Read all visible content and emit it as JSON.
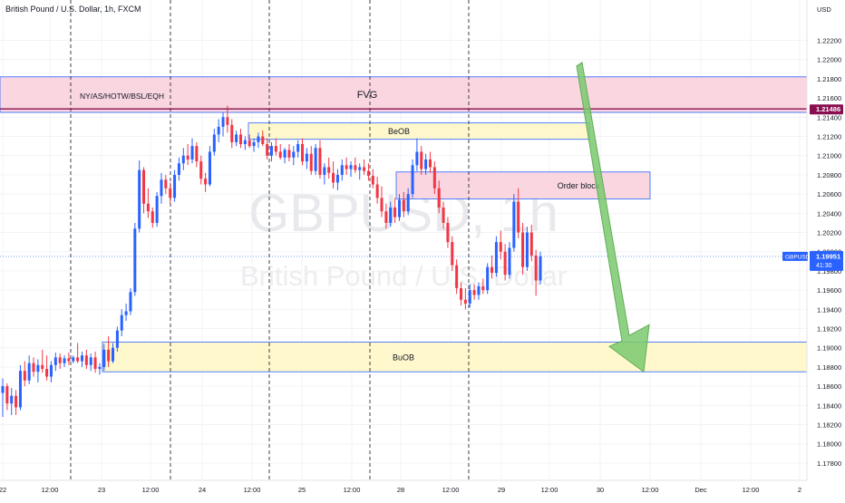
{
  "header": {
    "symbol_description": "British Pound / U.S. Dollar, 1h, FXCM",
    "currency": "USD"
  },
  "watermark": {
    "symbol": "GBPUSD, 1h",
    "name": "British Pound / U.S. Dollar"
  },
  "price_label": {
    "ticker": "GBPUSD",
    "price": "1.19951",
    "countdown": "41:30"
  },
  "colors": {
    "up": "#2962ff",
    "down": "#f23645",
    "pink_zone": "#f9d6e0",
    "yellow_zone": "#fff8cc",
    "zone_border": "#2962ff",
    "level_line": "#880e4f",
    "arrow": "#7bc96f"
  },
  "chart_data": {
    "type": "candlestick",
    "y_axis": {
      "min": 1.1762,
      "max": 1.2262,
      "ticks": [
        "1.22200",
        "1.22000",
        "1.21800",
        "1.21600",
        "1.21400",
        "1.21200",
        "1.21000",
        "1.20800",
        "1.20600",
        "1.20400",
        "1.20200",
        "1.20000",
        "1.19800",
        "1.19600",
        "1.19400",
        "1.19200",
        "1.19000",
        "1.18800",
        "1.18600",
        "1.18400",
        "1.18200",
        "1.18000",
        "1.17800"
      ]
    },
    "x_axis": {
      "ticks": [
        "22",
        "12:00",
        "23",
        "12:00",
        "24",
        "12:00",
        "25",
        "12:00",
        "28",
        "12:00",
        "29",
        "12:00",
        "30",
        "12:00",
        "Dec",
        "12:00",
        "2"
      ]
    },
    "session_separators": [
      "22 12:00",
      "23 12:00",
      "24 12:00",
      "25 12:00",
      "28 12:00"
    ],
    "zones": [
      {
        "label": "FVG",
        "kind": "pink",
        "top": 1.2182,
        "bottom": 1.2145
      },
      {
        "label": "NY/AS/HOTW/BSL/EQH",
        "kind": "text_on_zone",
        "price": 1.2162
      },
      {
        "label": "BeOB",
        "kind": "yellow",
        "top": 1.2134,
        "bottom": 1.2117
      },
      {
        "label": "Order block",
        "kind": "pink",
        "top": 1.2083,
        "bottom": 1.2055
      },
      {
        "label": "BuOB",
        "kind": "yellow",
        "top": 1.1906,
        "bottom": 1.1875
      }
    ],
    "levels": [
      {
        "label": "1.21486",
        "price": 1.21486
      },
      {
        "label": "1.19951",
        "price": 1.19951
      }
    ],
    "projection": {
      "direction": "down",
      "from": 1.2197,
      "to": 1.1875
    },
    "candles": [
      {
        "o": 1.1853,
        "h": 1.1868,
        "l": 1.1828,
        "c": 1.186
      },
      {
        "o": 1.186,
        "h": 1.1863,
        "l": 1.1835,
        "c": 1.1842
      },
      {
        "o": 1.1842,
        "h": 1.1858,
        "l": 1.183,
        "c": 1.185
      },
      {
        "o": 1.185,
        "h": 1.1856,
        "l": 1.183,
        "c": 1.1838
      },
      {
        "o": 1.1838,
        "h": 1.1882,
        "l": 1.1835,
        "c": 1.1876
      },
      {
        "o": 1.1876,
        "h": 1.1886,
        "l": 1.186,
        "c": 1.1866
      },
      {
        "o": 1.1866,
        "h": 1.1892,
        "l": 1.1862,
        "c": 1.1884
      },
      {
        "o": 1.1884,
        "h": 1.189,
        "l": 1.187,
        "c": 1.1875
      },
      {
        "o": 1.1875,
        "h": 1.1888,
        "l": 1.1864,
        "c": 1.1882
      },
      {
        "o": 1.1882,
        "h": 1.1898,
        "l": 1.1874,
        "c": 1.1878
      },
      {
        "o": 1.1878,
        "h": 1.1892,
        "l": 1.1866,
        "c": 1.187
      },
      {
        "o": 1.187,
        "h": 1.1886,
        "l": 1.1864,
        "c": 1.1882
      },
      {
        "o": 1.1882,
        "h": 1.1895,
        "l": 1.1876,
        "c": 1.189
      },
      {
        "o": 1.189,
        "h": 1.1894,
        "l": 1.1878,
        "c": 1.1884
      },
      {
        "o": 1.1884,
        "h": 1.1892,
        "l": 1.188,
        "c": 1.1889
      },
      {
        "o": 1.1889,
        "h": 1.1895,
        "l": 1.1882,
        "c": 1.1886
      },
      {
        "o": 1.1886,
        "h": 1.1892,
        "l": 1.1884,
        "c": 1.189
      },
      {
        "o": 1.189,
        "h": 1.1905,
        "l": 1.1884,
        "c": 1.1886
      },
      {
        "o": 1.1886,
        "h": 1.1896,
        "l": 1.188,
        "c": 1.1892
      },
      {
        "o": 1.1892,
        "h": 1.1898,
        "l": 1.1878,
        "c": 1.1882
      },
      {
        "o": 1.1882,
        "h": 1.1894,
        "l": 1.1876,
        "c": 1.189
      },
      {
        "o": 1.189,
        "h": 1.1896,
        "l": 1.1874,
        "c": 1.1878
      },
      {
        "o": 1.1878,
        "h": 1.1884,
        "l": 1.1872,
        "c": 1.188
      },
      {
        "o": 1.188,
        "h": 1.1904,
        "l": 1.1876,
        "c": 1.1898
      },
      {
        "o": 1.1898,
        "h": 1.1912,
        "l": 1.188,
        "c": 1.1886
      },
      {
        "o": 1.1886,
        "h": 1.1905,
        "l": 1.1884,
        "c": 1.19
      },
      {
        "o": 1.19,
        "h": 1.1922,
        "l": 1.1896,
        "c": 1.1918
      },
      {
        "o": 1.1918,
        "h": 1.194,
        "l": 1.1912,
        "c": 1.1934
      },
      {
        "o": 1.1934,
        "h": 1.1946,
        "l": 1.1928,
        "c": 1.1938
      },
      {
        "o": 1.1938,
        "h": 1.1962,
        "l": 1.1934,
        "c": 1.1958
      },
      {
        "o": 1.1958,
        "h": 1.203,
        "l": 1.1954,
        "c": 1.2024
      },
      {
        "o": 1.2024,
        "h": 1.2095,
        "l": 1.202,
        "c": 1.2085
      },
      {
        "o": 1.2085,
        "h": 1.2088,
        "l": 1.204,
        "c": 1.205
      },
      {
        "o": 1.205,
        "h": 1.2066,
        "l": 1.2035,
        "c": 1.2042
      },
      {
        "o": 1.2042,
        "h": 1.2046,
        "l": 1.2025,
        "c": 1.203
      },
      {
        "o": 1.203,
        "h": 1.2062,
        "l": 1.2026,
        "c": 1.2058
      },
      {
        "o": 1.2058,
        "h": 1.2082,
        "l": 1.205,
        "c": 1.2075
      },
      {
        "o": 1.2075,
        "h": 1.208,
        "l": 1.206,
        "c": 1.2066
      },
      {
        "o": 1.2066,
        "h": 1.2072,
        "l": 1.205,
        "c": 1.2056
      },
      {
        "o": 1.2056,
        "h": 1.2085,
        "l": 1.2052,
        "c": 1.208
      },
      {
        "o": 1.208,
        "h": 1.2098,
        "l": 1.2074,
        "c": 1.2092
      },
      {
        "o": 1.2092,
        "h": 1.2108,
        "l": 1.2085,
        "c": 1.21
      },
      {
        "o": 1.21,
        "h": 1.2112,
        "l": 1.209,
        "c": 1.2096
      },
      {
        "o": 1.2096,
        "h": 1.2118,
        "l": 1.2092,
        "c": 1.211
      },
      {
        "o": 1.211,
        "h": 1.2114,
        "l": 1.2088,
        "c": 1.2094
      },
      {
        "o": 1.2094,
        "h": 1.21,
        "l": 1.207,
        "c": 1.2076
      },
      {
        "o": 1.2076,
        "h": 1.2082,
        "l": 1.2062,
        "c": 1.207
      },
      {
        "o": 1.207,
        "h": 1.211,
        "l": 1.2068,
        "c": 1.2104
      },
      {
        "o": 1.2104,
        "h": 1.2128,
        "l": 1.21,
        "c": 1.2122
      },
      {
        "o": 1.2122,
        "h": 1.2138,
        "l": 1.2114,
        "c": 1.213
      },
      {
        "o": 1.213,
        "h": 1.2145,
        "l": 1.212,
        "c": 1.214
      },
      {
        "o": 1.214,
        "h": 1.2152,
        "l": 1.2124,
        "c": 1.2132
      },
      {
        "o": 1.2132,
        "h": 1.2138,
        "l": 1.2108,
        "c": 1.2114
      },
      {
        "o": 1.2114,
        "h": 1.2126,
        "l": 1.211,
        "c": 1.2122
      },
      {
        "o": 1.2122,
        "h": 1.2128,
        "l": 1.2108,
        "c": 1.2112
      },
      {
        "o": 1.2112,
        "h": 1.212,
        "l": 1.2106,
        "c": 1.2116
      },
      {
        "o": 1.2116,
        "h": 1.2122,
        "l": 1.2108,
        "c": 1.211
      },
      {
        "o": 1.211,
        "h": 1.2118,
        "l": 1.2104,
        "c": 1.2114
      },
      {
        "o": 1.2114,
        "h": 1.2124,
        "l": 1.2108,
        "c": 1.212
      },
      {
        "o": 1.212,
        "h": 1.2126,
        "l": 1.211,
        "c": 1.2112
      },
      {
        "o": 1.2112,
        "h": 1.2118,
        "l": 1.2096,
        "c": 1.21
      },
      {
        "o": 1.21,
        "h": 1.2114,
        "l": 1.2094,
        "c": 1.211
      },
      {
        "o": 1.211,
        "h": 1.2118,
        "l": 1.21,
        "c": 1.2104
      },
      {
        "o": 1.2104,
        "h": 1.2112,
        "l": 1.2096,
        "c": 1.2098
      },
      {
        "o": 1.2098,
        "h": 1.2108,
        "l": 1.2092,
        "c": 1.2106
      },
      {
        "o": 1.2106,
        "h": 1.2112,
        "l": 1.2094,
        "c": 1.2098
      },
      {
        "o": 1.2098,
        "h": 1.211,
        "l": 1.209,
        "c": 1.2104
      },
      {
        "o": 1.2104,
        "h": 1.2116,
        "l": 1.2098,
        "c": 1.2112
      },
      {
        "o": 1.2112,
        "h": 1.2118,
        "l": 1.209,
        "c": 1.2094
      },
      {
        "o": 1.2094,
        "h": 1.2108,
        "l": 1.2086,
        "c": 1.2102
      },
      {
        "o": 1.2102,
        "h": 1.211,
        "l": 1.208,
        "c": 1.2084
      },
      {
        "o": 1.2084,
        "h": 1.2112,
        "l": 1.208,
        "c": 1.2108
      },
      {
        "o": 1.2108,
        "h": 1.2116,
        "l": 1.2076,
        "c": 1.208
      },
      {
        "o": 1.208,
        "h": 1.2092,
        "l": 1.207,
        "c": 1.2088
      },
      {
        "o": 1.2088,
        "h": 1.2098,
        "l": 1.2076,
        "c": 1.2082
      },
      {
        "o": 1.2082,
        "h": 1.2094,
        "l": 1.2066,
        "c": 1.2072
      },
      {
        "o": 1.2072,
        "h": 1.2086,
        "l": 1.2064,
        "c": 1.208
      },
      {
        "o": 1.208,
        "h": 1.2096,
        "l": 1.2074,
        "c": 1.209
      },
      {
        "o": 1.209,
        "h": 1.2098,
        "l": 1.208,
        "c": 1.2086
      },
      {
        "o": 1.2086,
        "h": 1.2094,
        "l": 1.2078,
        "c": 1.209
      },
      {
        "o": 1.209,
        "h": 1.2098,
        "l": 1.2082,
        "c": 1.2085
      },
      {
        "o": 1.2085,
        "h": 1.2092,
        "l": 1.2075,
        "c": 1.2088
      },
      {
        "o": 1.2088,
        "h": 1.2096,
        "l": 1.208,
        "c": 1.2084
      },
      {
        "o": 1.2084,
        "h": 1.2092,
        "l": 1.2074,
        "c": 1.2079
      },
      {
        "o": 1.2079,
        "h": 1.2086,
        "l": 1.2066,
        "c": 1.207
      },
      {
        "o": 1.207,
        "h": 1.2078,
        "l": 1.205,
        "c": 1.2056
      },
      {
        "o": 1.2056,
        "h": 1.2068,
        "l": 1.2036,
        "c": 1.2042
      },
      {
        "o": 1.2042,
        "h": 1.205,
        "l": 1.2024,
        "c": 1.203
      },
      {
        "o": 1.203,
        "h": 1.2052,
        "l": 1.2026,
        "c": 1.2046
      },
      {
        "o": 1.2046,
        "h": 1.2056,
        "l": 1.203,
        "c": 1.2036
      },
      {
        "o": 1.2036,
        "h": 1.206,
        "l": 1.2032,
        "c": 1.2054
      },
      {
        "o": 1.2054,
        "h": 1.2062,
        "l": 1.2036,
        "c": 1.2042
      },
      {
        "o": 1.2042,
        "h": 1.2066,
        "l": 1.2038,
        "c": 1.206
      },
      {
        "o": 1.206,
        "h": 1.2096,
        "l": 1.2056,
        "c": 1.209
      },
      {
        "o": 1.209,
        "h": 1.2118,
        "l": 1.2084,
        "c": 1.2104
      },
      {
        "o": 1.2104,
        "h": 1.211,
        "l": 1.208,
        "c": 1.2086
      },
      {
        "o": 1.2086,
        "h": 1.2102,
        "l": 1.208,
        "c": 1.2096
      },
      {
        "o": 1.2096,
        "h": 1.2104,
        "l": 1.2082,
        "c": 1.2088
      },
      {
        "o": 1.2088,
        "h": 1.2094,
        "l": 1.206,
        "c": 1.2066
      },
      {
        "o": 1.2066,
        "h": 1.2074,
        "l": 1.204,
        "c": 1.2046
      },
      {
        "o": 1.2046,
        "h": 1.2052,
        "l": 1.2024,
        "c": 1.203
      },
      {
        "o": 1.203,
        "h": 1.2036,
        "l": 1.2004,
        "c": 1.201
      },
      {
        "o": 1.201,
        "h": 1.2016,
        "l": 1.198,
        "c": 1.1986
      },
      {
        "o": 1.1986,
        "h": 1.1992,
        "l": 1.1956,
        "c": 1.1962
      },
      {
        "o": 1.1962,
        "h": 1.1968,
        "l": 1.1944,
        "c": 1.195
      },
      {
        "o": 1.195,
        "h": 1.1962,
        "l": 1.194,
        "c": 1.1946
      },
      {
        "o": 1.1946,
        "h": 1.1966,
        "l": 1.1942,
        "c": 1.196
      },
      {
        "o": 1.196,
        "h": 1.1966,
        "l": 1.195,
        "c": 1.1955
      },
      {
        "o": 1.1955,
        "h": 1.1968,
        "l": 1.195,
        "c": 1.1964
      },
      {
        "o": 1.1964,
        "h": 1.1972,
        "l": 1.1956,
        "c": 1.196
      },
      {
        "o": 1.196,
        "h": 1.1988,
        "l": 1.1956,
        "c": 1.1984
      },
      {
        "o": 1.1984,
        "h": 1.1996,
        "l": 1.1972,
        "c": 1.1978
      },
      {
        "o": 1.1978,
        "h": 1.2016,
        "l": 1.1974,
        "c": 1.201
      },
      {
        "o": 1.201,
        "h": 1.2022,
        "l": 1.1992,
        "c": 1.2
      },
      {
        "o": 1.2,
        "h": 1.2008,
        "l": 1.197,
        "c": 1.1976
      },
      {
        "o": 1.1976,
        "h": 1.201,
        "l": 1.1972,
        "c": 1.2004
      },
      {
        "o": 1.2004,
        "h": 1.206,
        "l": 1.2,
        "c": 1.2052
      },
      {
        "o": 1.2052,
        "h": 1.2066,
        "l": 1.2014,
        "c": 1.202
      },
      {
        "o": 1.202,
        "h": 1.203,
        "l": 1.1976,
        "c": 1.1984
      },
      {
        "o": 1.1984,
        "h": 1.2026,
        "l": 1.198,
        "c": 1.202
      },
      {
        "o": 1.202,
        "h": 1.2028,
        "l": 1.199,
        "c": 1.1996
      },
      {
        "o": 1.1996,
        "h": 1.2002,
        "l": 1.1954,
        "c": 1.197
      },
      {
        "o": 1.197,
        "h": 1.2,
        "l": 1.1966,
        "c": 1.1995
      }
    ]
  }
}
